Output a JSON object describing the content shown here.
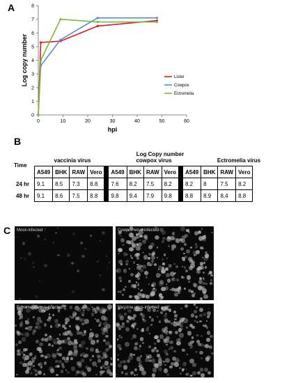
{
  "panels": {
    "a": "A",
    "b": "B",
    "c": "C"
  },
  "chart_data": {
    "type": "line",
    "xlabel": "hpi",
    "ylabel": "Log copy number",
    "xlim": [
      0,
      60
    ],
    "ylim": [
      0,
      8
    ],
    "xticks": [
      "0",
      "10",
      "20",
      "30",
      "40",
      "50",
      "60"
    ],
    "yticks": [
      "0",
      "1",
      "2",
      "3",
      "4",
      "5",
      "6",
      "7",
      "8"
    ],
    "grid": false,
    "legend_position": "right",
    "series": [
      {
        "name": "Lister",
        "color": "#e8151b",
        "x": [
          0,
          1,
          9,
          24,
          48
        ],
        "y": [
          0,
          5.3,
          5.4,
          6.5,
          6.9
        ]
      },
      {
        "name": "Cowpox",
        "color": "#4d8fd6",
        "x": [
          0,
          1,
          9,
          24,
          48
        ],
        "y": [
          0,
          3.6,
          5.5,
          7.1,
          7.1
        ]
      },
      {
        "name": "Ectromelia",
        "color": "#7ab836",
        "x": [
          0,
          1,
          9,
          24,
          48
        ],
        "y": [
          0,
          4.0,
          7.0,
          6.8,
          6.8
        ]
      }
    ]
  },
  "table": {
    "title": "Log Copy number",
    "row_header": "Time",
    "groups": [
      "vaccinia virus",
      "cowpox virus",
      "Ectromelia virus"
    ],
    "cols": [
      "A549",
      "BHK",
      "RAW",
      "Vero"
    ],
    "rows": [
      {
        "label": "24 hr",
        "g1": [
          "9.1",
          "8.5",
          "7.3",
          "8.8"
        ],
        "g2": [
          "7.6",
          "8.2",
          "7.5",
          "8.2"
        ],
        "g3": [
          "8.2",
          "8",
          "7.5",
          "8.2"
        ]
      },
      {
        "label": "48 hr",
        "g1": [
          "9.1",
          "8.6",
          "7.5",
          "8.8"
        ],
        "g2": [
          "9.8",
          "9.4",
          "7.9",
          "9.8"
        ],
        "g3": [
          "8.8",
          "8.9",
          "8.4",
          "8.8"
        ]
      }
    ]
  },
  "micrographs": [
    {
      "caption": "Mock-infected",
      "density": 35,
      "brightness": 0.35
    },
    {
      "caption": "Cowpox virus-infected",
      "density": 260,
      "brightness": 0.85
    },
    {
      "caption": "Ectromelia virus-infected",
      "density": 320,
      "brightness": 0.7
    },
    {
      "caption": "Vaccinia virus-infected",
      "density": 260,
      "brightness": 0.75
    }
  ]
}
